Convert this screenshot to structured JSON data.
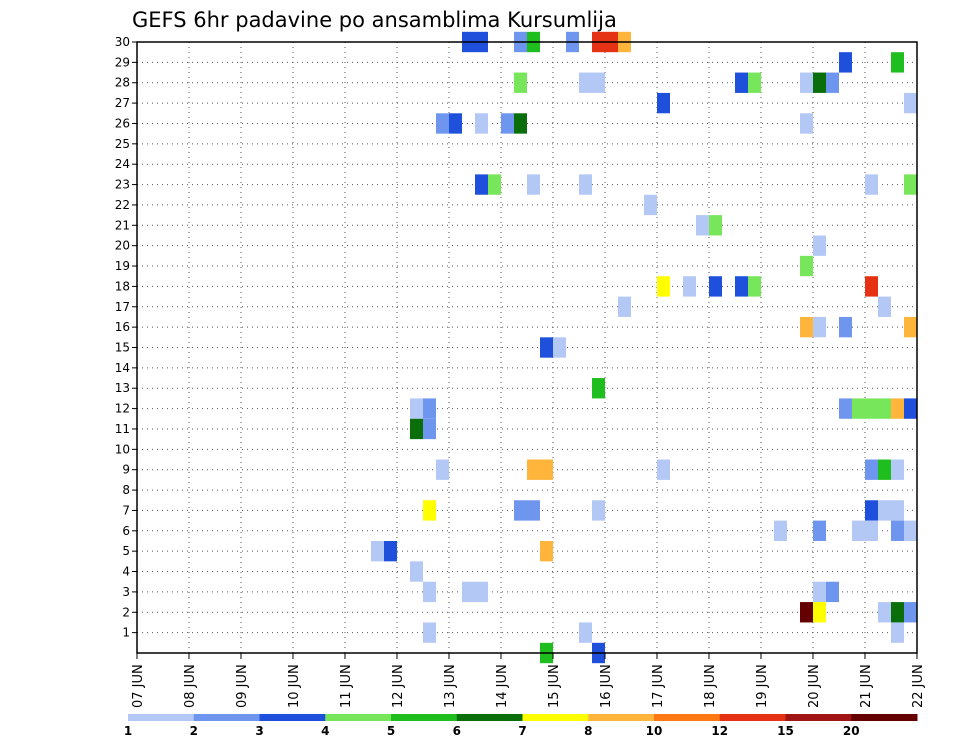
{
  "chart_data": {
    "type": "heatmap",
    "title": "GEFS 6hr padavine po ansamblima Kursumlija",
    "xlabel": "",
    "ylabel": "",
    "x_tick_labels": [
      "07 JUN",
      "08 JUN",
      "09 JUN",
      "10 JUN",
      "11 JUN",
      "12 JUN",
      "13 JUN",
      "14 JUN",
      "15 JUN",
      "16 JUN",
      "17 JUN",
      "18 JUN",
      "19 JUN",
      "20 JUN",
      "21 JUN",
      "22 JUN"
    ],
    "xlim": [
      0,
      60
    ],
    "x_unit": "6-hour steps from 07 JUN 00Z",
    "ylim": [
      0,
      30
    ],
    "y_ticks": [
      1,
      2,
      3,
      4,
      5,
      6,
      7,
      8,
      9,
      10,
      11,
      12,
      13,
      14,
      15,
      16,
      17,
      18,
      19,
      20,
      21,
      22,
      23,
      24,
      25,
      26,
      27,
      28,
      29,
      30
    ],
    "grid": true,
    "colorbar": {
      "labels": [
        "1",
        "2",
        "3",
        "4",
        "5",
        "6",
        "7",
        "8",
        "10",
        "12",
        "15",
        "20"
      ],
      "colors": [
        "#b4c8f5",
        "#6e96ee",
        "#1e50dc",
        "#78e65a",
        "#1ebe1e",
        "#0a6e0a",
        "#ffff00",
        "#ffb43c",
        "#ff7814",
        "#e63214",
        "#a01414",
        "#640000"
      ]
    },
    "cells": [
      [
        25,
        30,
        3
      ],
      [
        26,
        30,
        3
      ],
      [
        29,
        30,
        2
      ],
      [
        30,
        30,
        5
      ],
      [
        33,
        30,
        2
      ],
      [
        35,
        30,
        10
      ],
      [
        36,
        30,
        10
      ],
      [
        37,
        30,
        8
      ],
      [
        54,
        29,
        3
      ],
      [
        58,
        29,
        5
      ],
      [
        29,
        28,
        4
      ],
      [
        34,
        28,
        1
      ],
      [
        35,
        28,
        1
      ],
      [
        46,
        28,
        3
      ],
      [
        47,
        28,
        4
      ],
      [
        51,
        28,
        1
      ],
      [
        52,
        28,
        6
      ],
      [
        53,
        28,
        2
      ],
      [
        40,
        27,
        3
      ],
      [
        59,
        27,
        1
      ],
      [
        23,
        26,
        2
      ],
      [
        24,
        26,
        3
      ],
      [
        26,
        26,
        1
      ],
      [
        28,
        26,
        2
      ],
      [
        29,
        26,
        6
      ],
      [
        51,
        26,
        1
      ],
      [
        26,
        23,
        3
      ],
      [
        27,
        23,
        4
      ],
      [
        30,
        23,
        1
      ],
      [
        34,
        23,
        1
      ],
      [
        56,
        23,
        1
      ],
      [
        59,
        23,
        4
      ],
      [
        39,
        22,
        1
      ],
      [
        43,
        21,
        1
      ],
      [
        44,
        21,
        4
      ],
      [
        52,
        20,
        1
      ],
      [
        51,
        19,
        4
      ],
      [
        40,
        18,
        7
      ],
      [
        42,
        18,
        1
      ],
      [
        44,
        18,
        3
      ],
      [
        46,
        18,
        3
      ],
      [
        47,
        18,
        4
      ],
      [
        56,
        18,
        10
      ],
      [
        37,
        17,
        1
      ],
      [
        57,
        17,
        1
      ],
      [
        51,
        16,
        8
      ],
      [
        52,
        16,
        1
      ],
      [
        54,
        16,
        2
      ],
      [
        59,
        16,
        8
      ],
      [
        31,
        15,
        3
      ],
      [
        32,
        15,
        1
      ],
      [
        35,
        13,
        5
      ],
      [
        21,
        12,
        1
      ],
      [
        22,
        12,
        2
      ],
      [
        54,
        12,
        2
      ],
      [
        55,
        12,
        4
      ],
      [
        56,
        12,
        4
      ],
      [
        57,
        12,
        4
      ],
      [
        58,
        12,
        8
      ],
      [
        59,
        12,
        3
      ],
      [
        21,
        11,
        6
      ],
      [
        22,
        11,
        2
      ],
      [
        23,
        9,
        1
      ],
      [
        30,
        9,
        8
      ],
      [
        31,
        9,
        8
      ],
      [
        40,
        9,
        1
      ],
      [
        56,
        9,
        2
      ],
      [
        57,
        9,
        5
      ],
      [
        58,
        9,
        1
      ],
      [
        22,
        7,
        7
      ],
      [
        29,
        7,
        2
      ],
      [
        30,
        7,
        2
      ],
      [
        35,
        7,
        1
      ],
      [
        56,
        7,
        3
      ],
      [
        57,
        7,
        1
      ],
      [
        58,
        7,
        1
      ],
      [
        49,
        6,
        1
      ],
      [
        52,
        6,
        2
      ],
      [
        55,
        6,
        1
      ],
      [
        56,
        6,
        1
      ],
      [
        58,
        6,
        2
      ],
      [
        59,
        6,
        1
      ],
      [
        18,
        5,
        1
      ],
      [
        19,
        5,
        3
      ],
      [
        31,
        5,
        8
      ],
      [
        21,
        4,
        1
      ],
      [
        22,
        3,
        1
      ],
      [
        25,
        3,
        1
      ],
      [
        26,
        3,
        1
      ],
      [
        52,
        3,
        1
      ],
      [
        53,
        3,
        2
      ],
      [
        51,
        2,
        12
      ],
      [
        52,
        2,
        7
      ],
      [
        57,
        2,
        1
      ],
      [
        58,
        2,
        6
      ],
      [
        59,
        2,
        2
      ],
      [
        22,
        1,
        1
      ],
      [
        34,
        1,
        1
      ],
      [
        58,
        1,
        1
      ],
      [
        31,
        0,
        5
      ],
      [
        35,
        0,
        3
      ]
    ]
  }
}
